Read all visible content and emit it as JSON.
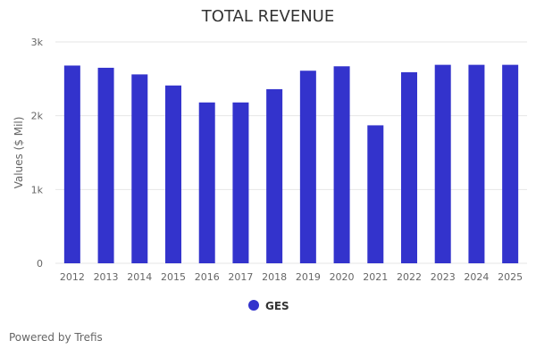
{
  "chart_data": {
    "type": "bar",
    "title": "TOTAL REVENUE",
    "xlabel": "",
    "ylabel": "Values ($ Mil)",
    "ylim": [
      0,
      3000
    ],
    "y_ticks": [
      {
        "value": 0,
        "label": "0"
      },
      {
        "value": 1000,
        "label": "1k"
      },
      {
        "value": 2000,
        "label": "2k"
      },
      {
        "value": 3000,
        "label": "3k"
      }
    ],
    "categories": [
      "2012",
      "2013",
      "2014",
      "2015",
      "2016",
      "2017",
      "2018",
      "2019",
      "2020",
      "2021",
      "2022",
      "2023",
      "2024",
      "2025"
    ],
    "series": [
      {
        "name": "GES",
        "color": "#3333cc",
        "values": [
          2680,
          2650,
          2560,
          2410,
          2180,
          2180,
          2360,
          2610,
          2670,
          1870,
          2590,
          2690,
          2690,
          2690
        ]
      }
    ],
    "legend_position": "bottom-center",
    "grid": true
  },
  "footer": {
    "credit": "Powered by Trefis"
  }
}
